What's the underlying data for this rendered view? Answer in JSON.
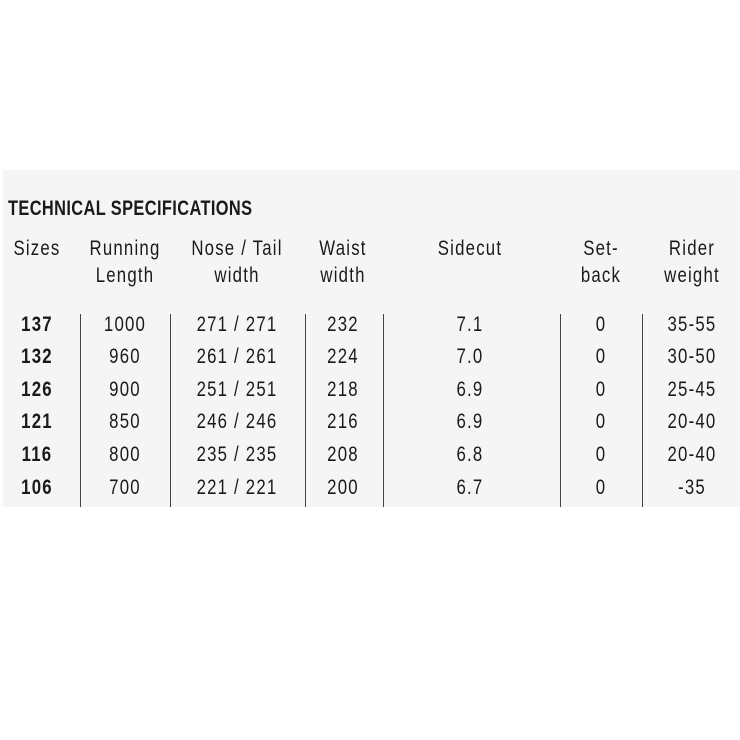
{
  "title": "TECHNICAL SPECIFICATIONS",
  "columns": [
    {
      "line1": "Sizes",
      "line2": ""
    },
    {
      "line1": "Running",
      "line2": "Length"
    },
    {
      "line1": "Nose / Tail",
      "line2": "width"
    },
    {
      "line1": "Waist",
      "line2": "width"
    },
    {
      "line1": "Sidecut",
      "line2": ""
    },
    {
      "line1": "Set-",
      "line2": "back"
    },
    {
      "line1": "Rider",
      "line2": "weight"
    }
  ],
  "rows": [
    [
      "137",
      "1000",
      "271 / 271",
      "232",
      "7.1",
      "0",
      "35-55"
    ],
    [
      "132",
      "960",
      "261 / 261",
      "224",
      "7.0",
      "0",
      "30-50"
    ],
    [
      "126",
      "900",
      "251 / 251",
      "218",
      "6.9",
      "0",
      "25-45"
    ],
    [
      "121",
      "850",
      "246 / 246",
      "216",
      "6.9",
      "0",
      "20-40"
    ],
    [
      "116",
      "800",
      "235 / 235",
      "208",
      "6.8",
      "0",
      "20-40"
    ],
    [
      "106",
      "700",
      "221 / 221",
      "200",
      "6.7",
      "0",
      "-35"
    ]
  ]
}
